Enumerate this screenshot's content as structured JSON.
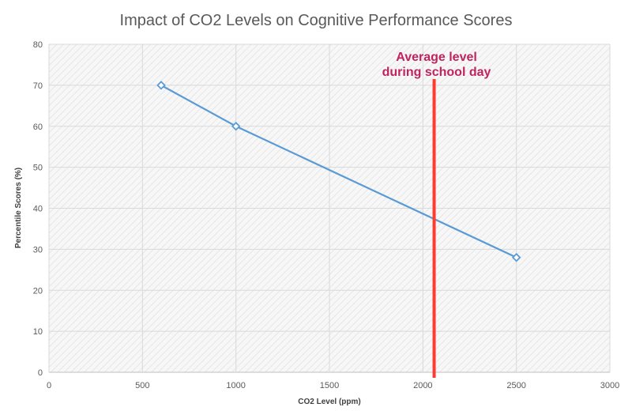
{
  "chart_data": {
    "type": "line",
    "title": "Impact of CO2 Levels on Cognitive Performance Scores",
    "xlabel": "CO2 Level (ppm)",
    "ylabel": "Percentile Scores (%)",
    "xlim": [
      0,
      3000
    ],
    "ylim": [
      0,
      80
    ],
    "x_ticks": [
      0,
      500,
      1000,
      1500,
      2000,
      2500,
      3000
    ],
    "y_ticks": [
      0,
      10,
      20,
      30,
      40,
      50,
      60,
      70,
      80
    ],
    "grid": true,
    "legend": "none",
    "series": [
      {
        "x": [
          600,
          1000,
          2500
        ],
        "y": [
          70,
          60,
          28
        ],
        "color": "#5B9BD5",
        "marker": "diamond"
      }
    ],
    "annotations": [
      {
        "type": "vline",
        "x": 2060,
        "color": "#FF3B30",
        "text_lines": [
          "Average level",
          "during school day"
        ],
        "text_color": "#C0245E"
      }
    ]
  }
}
